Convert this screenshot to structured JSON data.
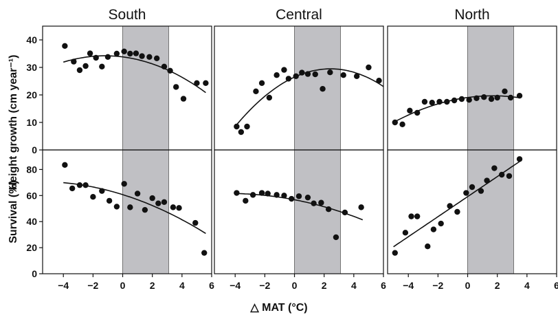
{
  "chart_data": {
    "type": "scatter",
    "xlabel": "△ MAT (°C)",
    "y_labels": [
      "Height growth (cm year⁻¹)",
      "Survival (%)"
    ],
    "columns": [
      "South",
      "Central",
      "North"
    ],
    "x_ticks": [
      "−4",
      "−2",
      "0",
      "2",
      "4",
      "6"
    ],
    "x_range": [
      -5.4,
      6.0
    ],
    "shaded_x": [
      0,
      3.1
    ],
    "colors": {
      "points": "#111111",
      "shade": "#c0c0c4",
      "fit": "#111111"
    },
    "height_growth": {
      "ylim": [
        0,
        45
      ],
      "y_ticks": [
        "0",
        "10",
        "20",
        "30",
        "40"
      ],
      "panels": [
        {
          "region": "South",
          "x": [
            -3.9,
            -3.3,
            -2.9,
            -2.5,
            -2.2,
            -1.8,
            -1.4,
            -1.0,
            -0.4,
            0.1,
            0.5,
            0.9,
            1.3,
            1.8,
            2.3,
            2.8,
            3.2,
            3.6,
            4.1,
            5.0,
            5.6
          ],
          "y": [
            37.8,
            32.1,
            29.0,
            30.5,
            35.1,
            33.5,
            30.3,
            33.8,
            35.0,
            35.8,
            35.0,
            35.1,
            34.1,
            33.8,
            33.3,
            30.3,
            28.8,
            22.9,
            18.6,
            24.3,
            24.3
          ],
          "fit": {
            "model": "quadratic",
            "x_from": -4.0,
            "x_to": 5.6
          }
        },
        {
          "region": "Central",
          "x": [
            -3.9,
            -3.6,
            -3.2,
            -2.6,
            -2.2,
            -1.7,
            -1.2,
            -0.7,
            -0.4,
            0.1,
            0.5,
            0.9,
            1.4,
            1.9,
            2.4,
            3.3,
            4.2,
            5.0,
            5.7
          ],
          "y": [
            8.5,
            6.5,
            8.5,
            21.3,
            24.3,
            19.0,
            27.2,
            29.1,
            25.9,
            26.8,
            28.1,
            27.6,
            27.5,
            22.2,
            28.2,
            27.2,
            26.8,
            30.0,
            25.2
          ],
          "fit": {
            "model": "quadratic",
            "x_from": -4.0,
            "x_to": 6.0
          }
        },
        {
          "region": "North",
          "x": [
            -4.9,
            -4.4,
            -3.9,
            -3.4,
            -2.9,
            -2.4,
            -1.9,
            -1.4,
            -0.9,
            -0.4,
            0.1,
            0.6,
            1.1,
            1.6,
            2.0,
            2.5,
            2.9,
            3.5
          ],
          "y": [
            10.0,
            9.3,
            14.3,
            13.5,
            17.5,
            17.2,
            17.5,
            17.5,
            18.0,
            18.5,
            18.2,
            18.8,
            19.2,
            18.5,
            19.0,
            21.3,
            19.0,
            19.7
          ],
          "fit": {
            "model": "quadratic",
            "x_from": -4.9,
            "x_to": 3.5
          }
        }
      ]
    },
    "survival": {
      "ylim": [
        0,
        95
      ],
      "y_ticks": [
        "0",
        "20",
        "40",
        "60",
        "80"
      ],
      "panels": [
        {
          "region": "South",
          "x": [
            -3.9,
            -3.4,
            -2.9,
            -2.5,
            -2.0,
            -1.4,
            -0.9,
            -0.4,
            0.1,
            0.5,
            1.0,
            1.5,
            2.0,
            2.4,
            2.8,
            3.4,
            3.8,
            4.9,
            5.5
          ],
          "y": [
            83.5,
            65.5,
            68.0,
            68.0,
            59.0,
            63.5,
            56.0,
            51.5,
            69.0,
            51.0,
            61.5,
            49.0,
            58.0,
            54.0,
            55.0,
            51.0,
            50.5,
            39.0,
            16.0
          ],
          "fit": {
            "model": "quadratic",
            "x_from": -4.0,
            "x_to": 5.6
          }
        },
        {
          "region": "Central",
          "x": [
            -3.9,
            -3.3,
            -2.8,
            -2.2,
            -1.8,
            -1.2,
            -0.7,
            -0.2,
            0.3,
            0.9,
            1.3,
            1.8,
            2.3,
            2.8,
            3.4,
            4.5
          ],
          "y": [
            62.0,
            56.0,
            60.5,
            62.0,
            61.5,
            60.5,
            60.0,
            57.5,
            59.5,
            58.5,
            54.0,
            54.5,
            49.5,
            28.0,
            47.0,
            51.0
          ],
          "fit": {
            "model": "quadratic",
            "x_from": -3.9,
            "x_to": 4.6
          }
        },
        {
          "region": "North",
          "x": [
            -4.9,
            -4.2,
            -3.8,
            -3.4,
            -2.7,
            -2.3,
            -1.8,
            -1.2,
            -0.7,
            -0.1,
            0.3,
            0.9,
            1.3,
            1.8,
            2.3,
            2.8,
            3.5
          ],
          "y": [
            16.0,
            31.5,
            44.0,
            44.0,
            21.0,
            34.0,
            38.5,
            52.0,
            47.5,
            62.0,
            66.5,
            63.5,
            71.5,
            81.0,
            76.0,
            75.0,
            88.0
          ],
          "fit": {
            "model": "linear",
            "x_from": -5.0,
            "x_to": 3.5
          }
        }
      ]
    }
  }
}
